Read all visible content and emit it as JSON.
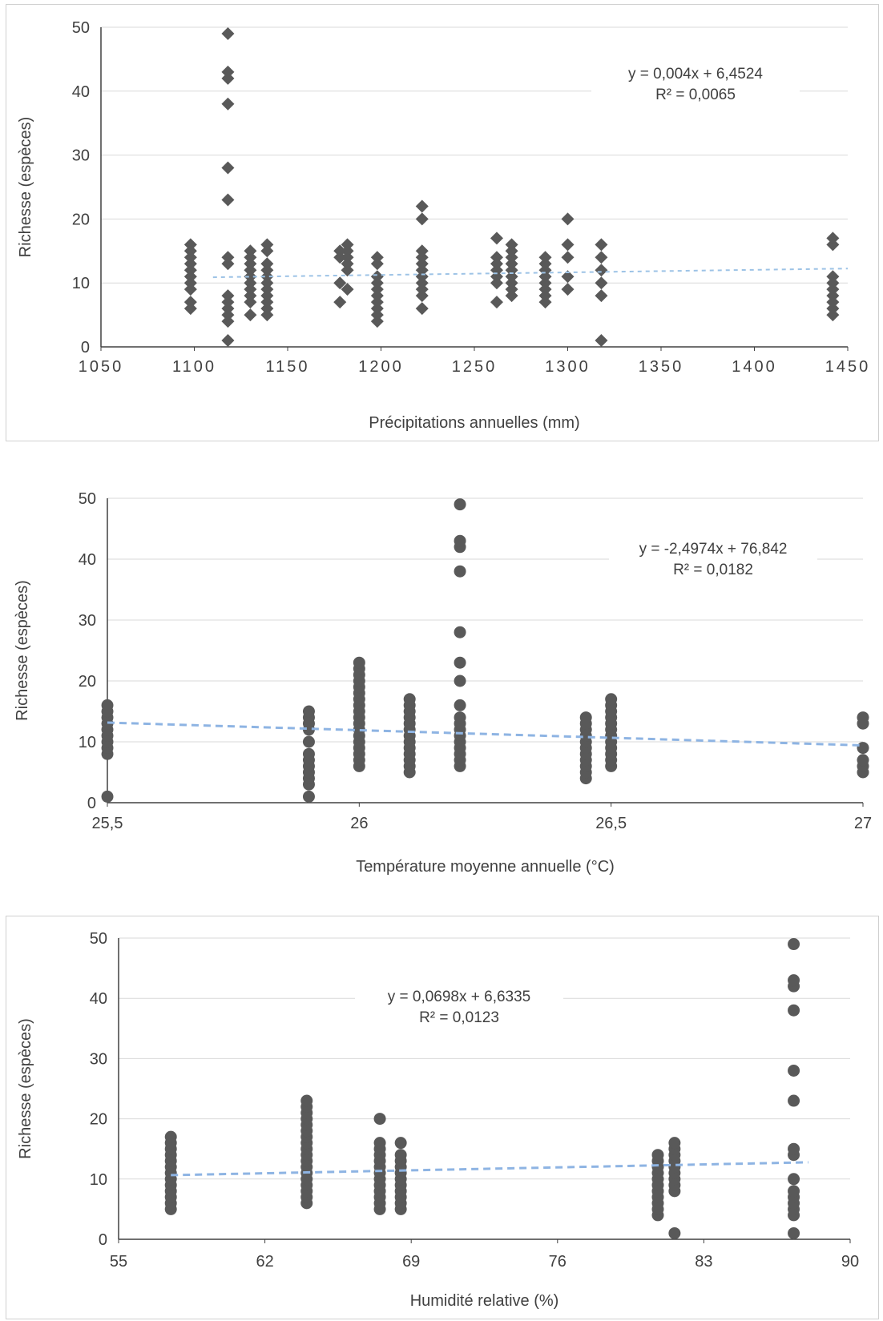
{
  "chart_data": [
    {
      "type": "scatter",
      "marker": "diamond",
      "xlabel": "Précipitations annuelles (mm)",
      "ylabel": "Richesse (espèces)",
      "xlim": [
        1050,
        1450
      ],
      "ylim": [
        0,
        50
      ],
      "xticks": [
        "1050",
        "1100",
        "1150",
        "1200",
        "1250",
        "1300",
        "1350",
        "1400",
        "1450"
      ],
      "yticks": [
        "0",
        "10",
        "20",
        "30",
        "40",
        "50"
      ],
      "grid": true,
      "equation": "y = 0,004x + 6,4524",
      "r2": "R² = 0,0065",
      "trendline": {
        "slope": 0.004,
        "intercept": 6.4524,
        "x_range": [
          1110,
          1450
        ]
      },
      "colors": {
        "marker": "#595959",
        "trend": "#9dc3e6"
      },
      "groups": [
        {
          "x": 1098,
          "y": [
            6,
            7,
            9,
            10,
            11,
            12,
            13,
            14,
            15,
            16
          ]
        },
        {
          "x": 1118,
          "y": [
            1,
            4,
            5,
            6,
            7,
            8,
            13,
            14,
            23,
            28,
            38,
            42,
            43,
            49
          ]
        },
        {
          "x": 1130,
          "y": [
            5,
            7,
            8,
            9,
            10,
            11,
            12,
            13,
            14,
            15
          ]
        },
        {
          "x": 1139,
          "y": [
            5,
            6,
            7,
            8,
            9,
            10,
            11,
            12,
            13,
            15,
            16
          ]
        },
        {
          "x": 1178,
          "y": [
            7,
            10,
            14,
            15
          ]
        },
        {
          "x": 1182,
          "y": [
            9,
            12,
            13,
            14,
            15,
            16
          ]
        },
        {
          "x": 1198,
          "y": [
            4,
            5,
            6,
            7,
            8,
            9,
            10,
            11,
            13,
            14
          ]
        },
        {
          "x": 1222,
          "y": [
            6,
            8,
            9,
            10,
            11,
            12,
            13,
            14,
            15,
            20,
            22
          ]
        },
        {
          "x": 1262,
          "y": [
            7,
            10,
            11,
            12,
            13,
            14,
            17
          ]
        },
        {
          "x": 1270,
          "y": [
            8,
            9,
            10,
            11,
            12,
            13,
            14,
            15,
            16
          ]
        },
        {
          "x": 1288,
          "y": [
            7,
            8,
            9,
            10,
            11,
            12,
            13,
            14
          ]
        },
        {
          "x": 1300,
          "y": [
            9,
            11,
            14,
            16,
            20
          ]
        },
        {
          "x": 1318,
          "y": [
            1,
            8,
            10,
            12,
            14,
            16
          ]
        },
        {
          "x": 1442,
          "y": [
            5,
            6,
            7,
            8,
            9,
            10,
            11,
            16,
            17
          ]
        }
      ]
    },
    {
      "type": "scatter",
      "marker": "circle",
      "xlabel": "Température moyenne annuelle (°C)",
      "ylabel": "Richesse (espèces)",
      "xlim": [
        25.5,
        27
      ],
      "ylim": [
        0,
        50
      ],
      "xticks": [
        "25,5",
        "26",
        "26,5",
        "27"
      ],
      "yticks": [
        "0",
        "10",
        "20",
        "30",
        "40",
        "50"
      ],
      "grid": true,
      "equation": "y = -2,4974x + 76,842",
      "r2": "R² = 0,0182",
      "trendline": {
        "slope": -2.4974,
        "intercept": 76.842,
        "x_range": [
          25.5,
          27
        ]
      },
      "colors": {
        "marker": "#595959",
        "trend": "#8eb4e3"
      },
      "groups": [
        {
          "x": 25.5,
          "y": [
            1,
            8,
            9,
            10,
            11,
            12,
            13,
            14,
            15,
            16
          ]
        },
        {
          "x": 25.9,
          "y": [
            1,
            3,
            4,
            5,
            6,
            7,
            8,
            10,
            12,
            13,
            14,
            15
          ]
        },
        {
          "x": 26.0,
          "y": [
            6,
            7,
            8,
            9,
            10,
            11,
            12,
            13,
            14,
            15,
            16,
            17,
            18,
            19,
            20,
            21,
            22,
            23
          ]
        },
        {
          "x": 26.1,
          "y": [
            5,
            6,
            7,
            8,
            9,
            10,
            11,
            12,
            13,
            14,
            15,
            16,
            17
          ]
        },
        {
          "x": 26.2,
          "y": [
            6,
            7,
            8,
            9,
            10,
            11,
            12,
            13,
            14,
            16,
            20,
            23,
            28,
            38,
            42,
            43,
            49
          ]
        },
        {
          "x": 26.45,
          "y": [
            4,
            5,
            6,
            7,
            8,
            9,
            10,
            11,
            12,
            13,
            14
          ]
        },
        {
          "x": 26.5,
          "y": [
            6,
            7,
            8,
            9,
            10,
            11,
            12,
            13,
            14,
            15,
            16,
            17
          ]
        },
        {
          "x": 27.0,
          "y": [
            5,
            6,
            7,
            9,
            13,
            14
          ]
        }
      ]
    },
    {
      "type": "scatter",
      "marker": "circle",
      "xlabel": "Humidité relative (%)",
      "ylabel": "Richesse (espèces)",
      "xlim": [
        55,
        90
      ],
      "ylim": [
        0,
        50
      ],
      "xticks": [
        "55",
        "62",
        "69",
        "76",
        "83",
        "90"
      ],
      "yticks": [
        "0",
        "10",
        "20",
        "30",
        "40",
        "50"
      ],
      "grid": true,
      "equation": "y = 0,0698x + 6,6335",
      "r2": "R² = 0,0123",
      "trendline": {
        "slope": 0.0698,
        "intercept": 6.6335,
        "x_range": [
          57.5,
          88
        ]
      },
      "colors": {
        "marker": "#595959",
        "trend": "#8eb4e3"
      },
      "groups": [
        {
          "x": 57.5,
          "y": [
            5,
            6,
            7,
            8,
            9,
            10,
            11,
            12,
            13,
            14,
            15,
            16,
            17
          ]
        },
        {
          "x": 64,
          "y": [
            6,
            7,
            8,
            9,
            10,
            11,
            12,
            13,
            14,
            15,
            16,
            17,
            18,
            19,
            20,
            21,
            22,
            23
          ]
        },
        {
          "x": 67.5,
          "y": [
            5,
            6,
            7,
            8,
            9,
            10,
            11,
            12,
            13,
            14,
            15,
            16,
            20
          ]
        },
        {
          "x": 68.5,
          "y": [
            5,
            6,
            7,
            8,
            9,
            10,
            11,
            12,
            13,
            14,
            16
          ]
        },
        {
          "x": 80.8,
          "y": [
            4,
            5,
            6,
            7,
            8,
            9,
            10,
            11,
            12,
            13,
            14
          ]
        },
        {
          "x": 81.6,
          "y": [
            1,
            8,
            9,
            10,
            11,
            12,
            13,
            14,
            15,
            16
          ]
        },
        {
          "x": 87.3,
          "y": [
            1,
            4,
            5,
            6,
            7,
            8,
            10,
            14,
            15,
            23,
            28,
            38,
            42,
            43,
            49
          ]
        }
      ]
    }
  ]
}
